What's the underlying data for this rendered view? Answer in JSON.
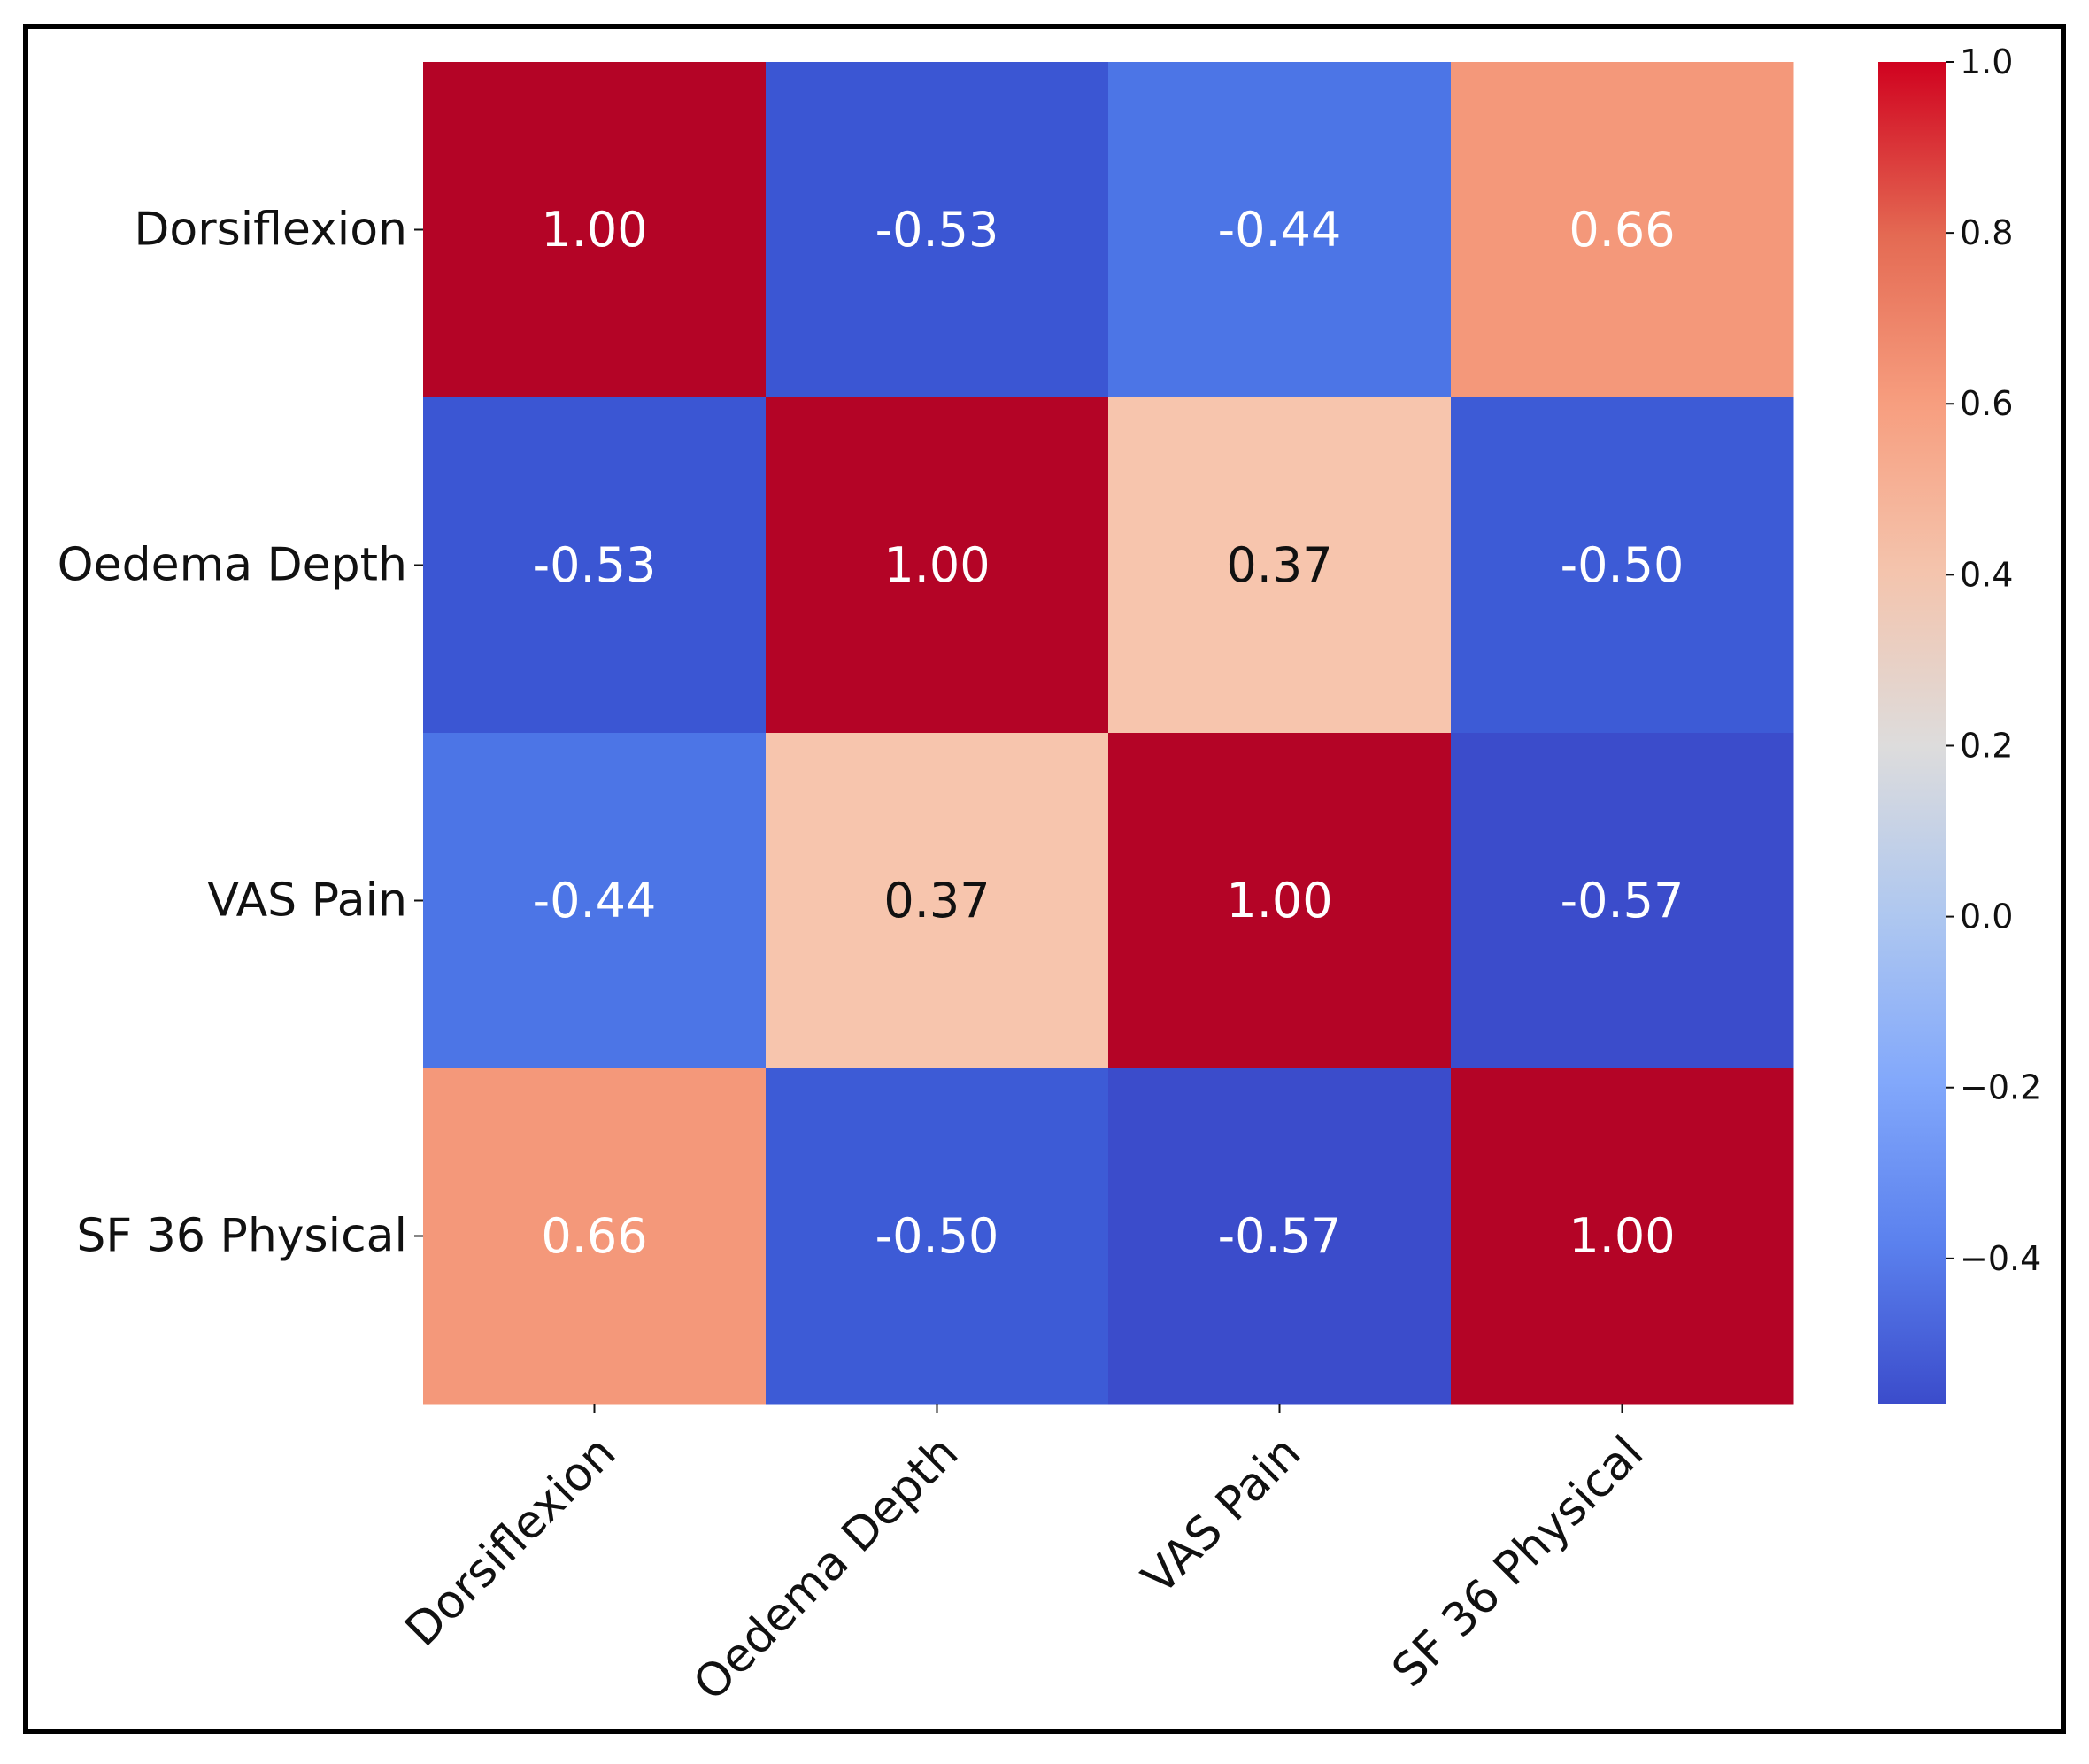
{
  "chart_data": {
    "type": "heatmap",
    "title": "",
    "xlabel": "",
    "ylabel": "",
    "variables": [
      "Dorsiflexion",
      "Oedema Depth",
      "VAS Pain",
      "SF 36 Physical"
    ],
    "matrix": [
      [
        1.0,
        -0.53,
        -0.44,
        0.66
      ],
      [
        -0.53,
        1.0,
        0.37,
        -0.5
      ],
      [
        -0.44,
        0.37,
        1.0,
        -0.57
      ],
      [
        0.66,
        -0.5,
        -0.57,
        1.0
      ]
    ],
    "value_format": "0.00",
    "colormap": "coolwarm",
    "colorbar": {
      "vmin": -0.57,
      "vmax": 1.0,
      "ticks": [
        1.0,
        0.8,
        0.6,
        0.4,
        0.2,
        0.0,
        -0.2,
        -0.4
      ],
      "tick_labels": [
        "1.0",
        "0.8",
        "0.6",
        "0.4",
        "0.2",
        "0.0",
        "−0.2",
        "−0.4"
      ]
    },
    "colors": {
      "1.00": "#b40426",
      "0.66": "#f4987a",
      "0.37": "#f7c5ad",
      "-0.44": "#4c75e6",
      "-0.50": "#3d5bd6",
      "-0.53": "#3b56d3",
      "-0.57": "#3b4ccb",
      "light_text": "#ffffff",
      "dark_text": "#111111"
    }
  }
}
